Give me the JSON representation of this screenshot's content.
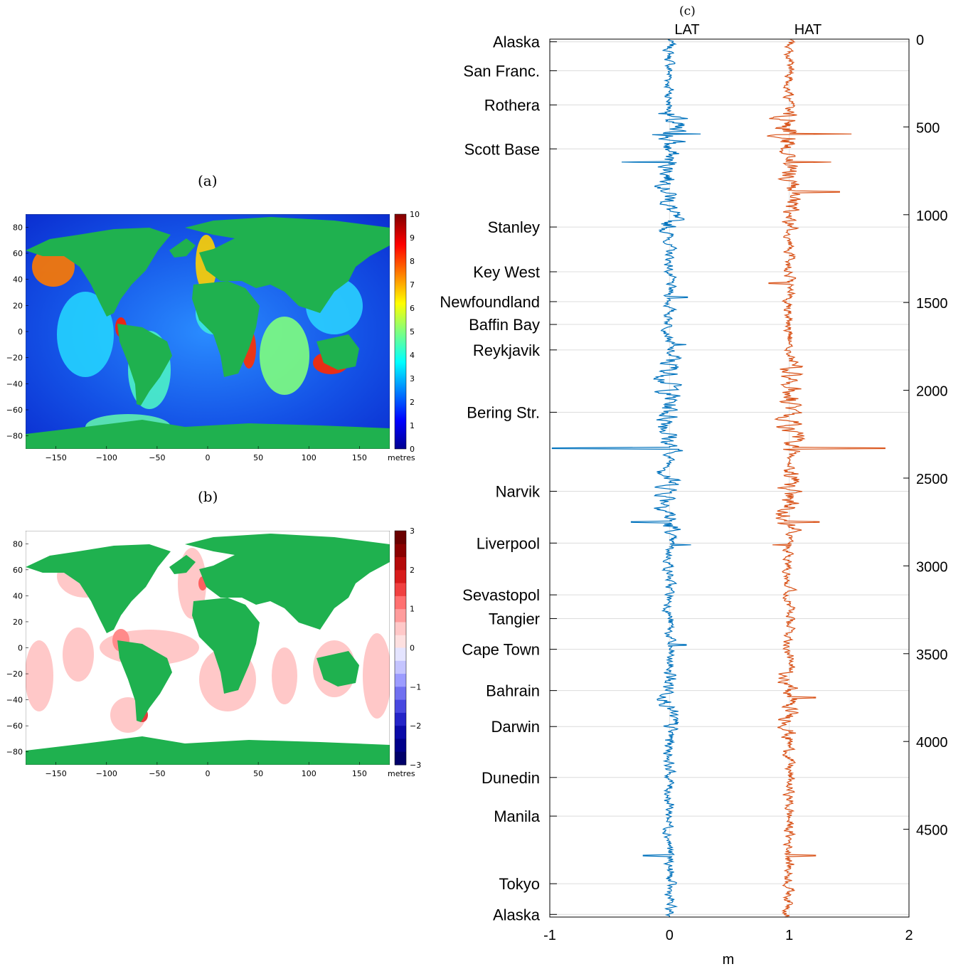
{
  "panels": {
    "a": {
      "title": "(a)",
      "unit": "metres",
      "x_ticks": [
        "−150",
        "−100",
        "−50",
        "0",
        "50",
        "100",
        "150"
      ],
      "y_ticks": [
        "80",
        "60",
        "40",
        "20",
        "0",
        "−20",
        "−40",
        "−60",
        "−80"
      ],
      "colorbar_ticks": [
        "10",
        "9",
        "8",
        "7",
        "6",
        "5",
        "4",
        "3",
        "2",
        "1",
        "0"
      ]
    },
    "b": {
      "title": "(b)",
      "unit": "metres",
      "x_ticks": [
        "−150",
        "−100",
        "−50",
        "0",
        "50",
        "100",
        "150"
      ],
      "y_ticks": [
        "80",
        "60",
        "40",
        "20",
        "0",
        "−20",
        "−40",
        "−60",
        "−80"
      ],
      "colorbar_ticks": [
        "3",
        "2",
        "1",
        "0",
        "−1",
        "−2",
        "−3"
      ]
    },
    "c": {
      "title": "(c)"
    }
  },
  "colors": {
    "land": "#1fb14f",
    "lat_series": "#0072bd",
    "hat_series": "#d95319",
    "ocean_low": "#0b2fd1"
  },
  "chart_data": [
    {
      "type": "heatmap",
      "title": "(a)",
      "x_ticks": [
        -150,
        -100,
        -50,
        0,
        50,
        100,
        150
      ],
      "y_ticks": [
        80,
        60,
        40,
        20,
        0,
        -20,
        -40,
        -60,
        -80
      ],
      "xlim": [
        -180,
        180
      ],
      "ylim": [
        -90,
        90
      ],
      "colorbar": {
        "label": "metres",
        "range": [
          0,
          10
        ],
        "ticks": [
          0,
          1,
          2,
          3,
          4,
          5,
          6,
          7,
          8,
          9,
          10
        ]
      }
    },
    {
      "type": "heatmap",
      "title": "(b)",
      "x_ticks": [
        -150,
        -100,
        -50,
        0,
        50,
        100,
        150
      ],
      "y_ticks": [
        80,
        60,
        40,
        20,
        0,
        -20,
        -40,
        -60,
        -80
      ],
      "xlim": [
        -180,
        180
      ],
      "ylim": [
        -90,
        90
      ],
      "colorbar": {
        "label": "metres",
        "range": [
          -3,
          3
        ],
        "ticks": [
          -3,
          -2,
          -1,
          0,
          1,
          2,
          3
        ]
      }
    },
    {
      "type": "line",
      "title": "(c)",
      "xlabel": "m",
      "xlim": [
        -1,
        2
      ],
      "x_ticks": [
        -1,
        0,
        1,
        2
      ],
      "ylim": [
        0,
        5000
      ],
      "y_reversed": true,
      "y_ticks": [
        0,
        500,
        1000,
        1500,
        2000,
        2500,
        3000,
        3500,
        4000,
        4500
      ],
      "grid": true,
      "series": [
        {
          "name": "LAT",
          "baseline": 0
        },
        {
          "name": "HAT",
          "baseline": 1
        }
      ],
      "stations": [
        {
          "name": "Alaska",
          "km": 15
        },
        {
          "name": "San Franc.",
          "km": 180
        },
        {
          "name": "Rothera",
          "km": 375
        },
        {
          "name": "Scott Base",
          "km": 625
        },
        {
          "name": "Stanley",
          "km": 1070
        },
        {
          "name": "Key West",
          "km": 1325
        },
        {
          "name": "Newfoundland",
          "km": 1495
        },
        {
          "name": "Baffin Bay",
          "km": 1625
        },
        {
          "name": "Reykjavik",
          "km": 1770
        },
        {
          "name": "Bering Str.",
          "km": 2125
        },
        {
          "name": "Narvik",
          "km": 2575
        },
        {
          "name": "Liverpool",
          "km": 2870
        },
        {
          "name": "Sevastopol",
          "km": 3165
        },
        {
          "name": "Tangier",
          "km": 3300
        },
        {
          "name": "Cape Town",
          "km": 3475
        },
        {
          "name": "Bahrain",
          "km": 3710
        },
        {
          "name": "Darwin",
          "km": 3915
        },
        {
          "name": "Dunedin",
          "km": 4205
        },
        {
          "name": "Manila",
          "km": 4425
        },
        {
          "name": "Tokyo",
          "km": 4810
        },
        {
          "name": "Alaska",
          "km": 4985
        }
      ]
    }
  ]
}
